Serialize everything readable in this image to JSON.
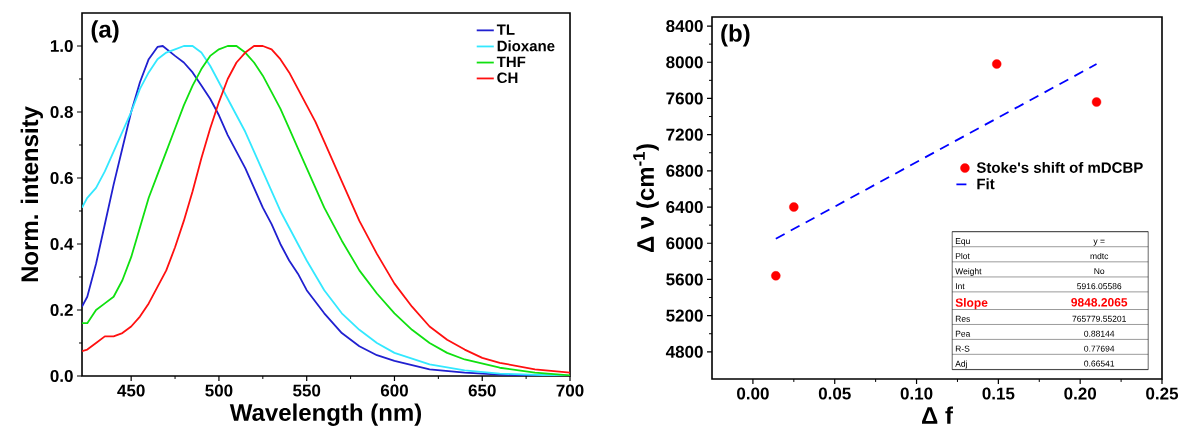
{
  "chart_data": [
    {
      "type": "line",
      "xlabel": "Wavelength (nm)",
      "ylabel": "Norm. intensity",
      "annotations": [
        "(a)"
      ],
      "xlim": [
        422,
        700
      ],
      "ylim": [
        0,
        1.1
      ],
      "xticks": [
        450,
        500,
        550,
        600,
        650,
        700
      ],
      "yticks": [
        {
          "value": 0,
          "label": "0.0"
        },
        {
          "value": 0.2,
          "label": "0.2"
        },
        {
          "value": 0.4,
          "label": "0.4"
        },
        {
          "value": 0.6,
          "label": "0.6"
        },
        {
          "value": 0.8,
          "label": "0.8"
        },
        {
          "value": 1.0,
          "label": "1.0"
        }
      ],
      "legend": "top right",
      "series": [
        {
          "name": "TL",
          "color": "#2020d0",
          "x": [
            422,
            425,
            430,
            435,
            440,
            445,
            450,
            455,
            460,
            465,
            468,
            475,
            480,
            485,
            490,
            495,
            500,
            505,
            510,
            515,
            520,
            525,
            530,
            535,
            540,
            545,
            550,
            560,
            570,
            580,
            590,
            600,
            620,
            640,
            660,
            700
          ],
          "values": [
            0.21,
            0.24,
            0.34,
            0.46,
            0.58,
            0.69,
            0.8,
            0.89,
            0.96,
            0.997,
            1.0,
            0.97,
            0.95,
            0.92,
            0.88,
            0.84,
            0.79,
            0.73,
            0.68,
            0.63,
            0.57,
            0.51,
            0.46,
            0.4,
            0.35,
            0.31,
            0.26,
            0.19,
            0.13,
            0.09,
            0.063,
            0.046,
            0.02,
            0.01,
            0.004,
            0
          ]
        },
        {
          "name": "Dioxane",
          "color": "#33e8ff",
          "x": [
            422,
            425,
            430,
            435,
            440,
            445,
            450,
            455,
            460,
            465,
            470,
            475,
            480,
            485,
            490,
            495,
            500,
            505,
            510,
            515,
            520,
            525,
            530,
            535,
            540,
            545,
            550,
            560,
            570,
            580,
            590,
            600,
            620,
            640,
            660,
            700
          ],
          "values": [
            0.51,
            0.54,
            0.57,
            0.62,
            0.68,
            0.74,
            0.8,
            0.87,
            0.92,
            0.96,
            0.98,
            0.99,
            1.0,
            1.0,
            0.98,
            0.94,
            0.89,
            0.84,
            0.79,
            0.74,
            0.68,
            0.62,
            0.56,
            0.5,
            0.45,
            0.4,
            0.35,
            0.26,
            0.19,
            0.14,
            0.1,
            0.07,
            0.035,
            0.017,
            0.007,
            0
          ]
        },
        {
          "name": "THF",
          "color": "#10e010",
          "x": [
            422,
            425,
            430,
            435,
            440,
            445,
            450,
            455,
            460,
            465,
            470,
            475,
            480,
            485,
            490,
            495,
            500,
            505,
            510,
            515,
            520,
            525,
            530,
            535,
            540,
            545,
            550,
            555,
            560,
            570,
            580,
            590,
            600,
            610,
            620,
            630,
            640,
            660,
            680,
            700
          ],
          "values": [
            0.16,
            0.16,
            0.2,
            0.22,
            0.24,
            0.29,
            0.36,
            0.45,
            0.54,
            0.61,
            0.68,
            0.75,
            0.82,
            0.88,
            0.93,
            0.97,
            0.99,
            1.0,
            1.0,
            0.98,
            0.95,
            0.91,
            0.86,
            0.81,
            0.75,
            0.69,
            0.63,
            0.57,
            0.51,
            0.41,
            0.32,
            0.25,
            0.19,
            0.14,
            0.1,
            0.07,
            0.05,
            0.025,
            0.01,
            0.002
          ]
        },
        {
          "name": "CH",
          "color": "#ff1010",
          "x": [
            422,
            425,
            430,
            435,
            440,
            445,
            450,
            455,
            460,
            465,
            470,
            475,
            480,
            485,
            490,
            495,
            500,
            505,
            510,
            515,
            520,
            525,
            530,
            535,
            540,
            545,
            550,
            555,
            560,
            570,
            580,
            590,
            600,
            610,
            620,
            630,
            640,
            650,
            660,
            680,
            700
          ],
          "values": [
            0.075,
            0.08,
            0.1,
            0.12,
            0.12,
            0.13,
            0.15,
            0.18,
            0.22,
            0.27,
            0.32,
            0.39,
            0.47,
            0.56,
            0.66,
            0.75,
            0.83,
            0.9,
            0.95,
            0.98,
            1.0,
            1.0,
            0.99,
            0.96,
            0.92,
            0.87,
            0.82,
            0.77,
            0.71,
            0.59,
            0.47,
            0.37,
            0.28,
            0.21,
            0.15,
            0.11,
            0.08,
            0.055,
            0.04,
            0.02,
            0.01
          ]
        }
      ]
    },
    {
      "type": "scatter",
      "xlabel": "Δ f",
      "ylabel": "Δ ν (cm$^{-1}$)",
      "annotations": [
        "(b)",
        "Equ",
        "y =",
        "Plot",
        "mdtc",
        "Weight",
        "No",
        "Int",
        "5916.05586",
        "Slope",
        "9848.2065",
        "Res",
        "765779.55201",
        "Pea",
        "0.88144",
        "R-S",
        "0.77694",
        "Adj",
        "0.66541"
      ],
      "xlim": [
        -0.025,
        0.25
      ],
      "ylim": [
        4500,
        8500
      ],
      "xticks": [
        {
          "value": 0,
          "label": "0.00"
        },
        {
          "value": 0.05,
          "label": "0.05"
        },
        {
          "value": 0.1,
          "label": "0.10"
        },
        {
          "value": 0.15,
          "label": "0.15"
        },
        {
          "value": 0.2,
          "label": "0.20"
        },
        {
          "value": 0.25,
          "label": "0.25"
        }
      ],
      "yticks": [
        4800,
        5200,
        5600,
        6000,
        6400,
        6800,
        7200,
        7600,
        8000,
        8400
      ],
      "legend": "right",
      "series": [
        {
          "name": "Stoke's shift of mDCBP",
          "color": "#ff0000",
          "x": [
            0.014,
            0.025,
            0.149,
            0.21
          ],
          "values": [
            5640,
            6400,
            7980,
            7560
          ]
        },
        {
          "name": "Fit",
          "type": "line",
          "line_style": "dashed",
          "color": "#0000ff",
          "x": [
            0.014,
            0.21
          ],
          "values": [
            6050,
            7980
          ]
        }
      ]
    }
  ]
}
